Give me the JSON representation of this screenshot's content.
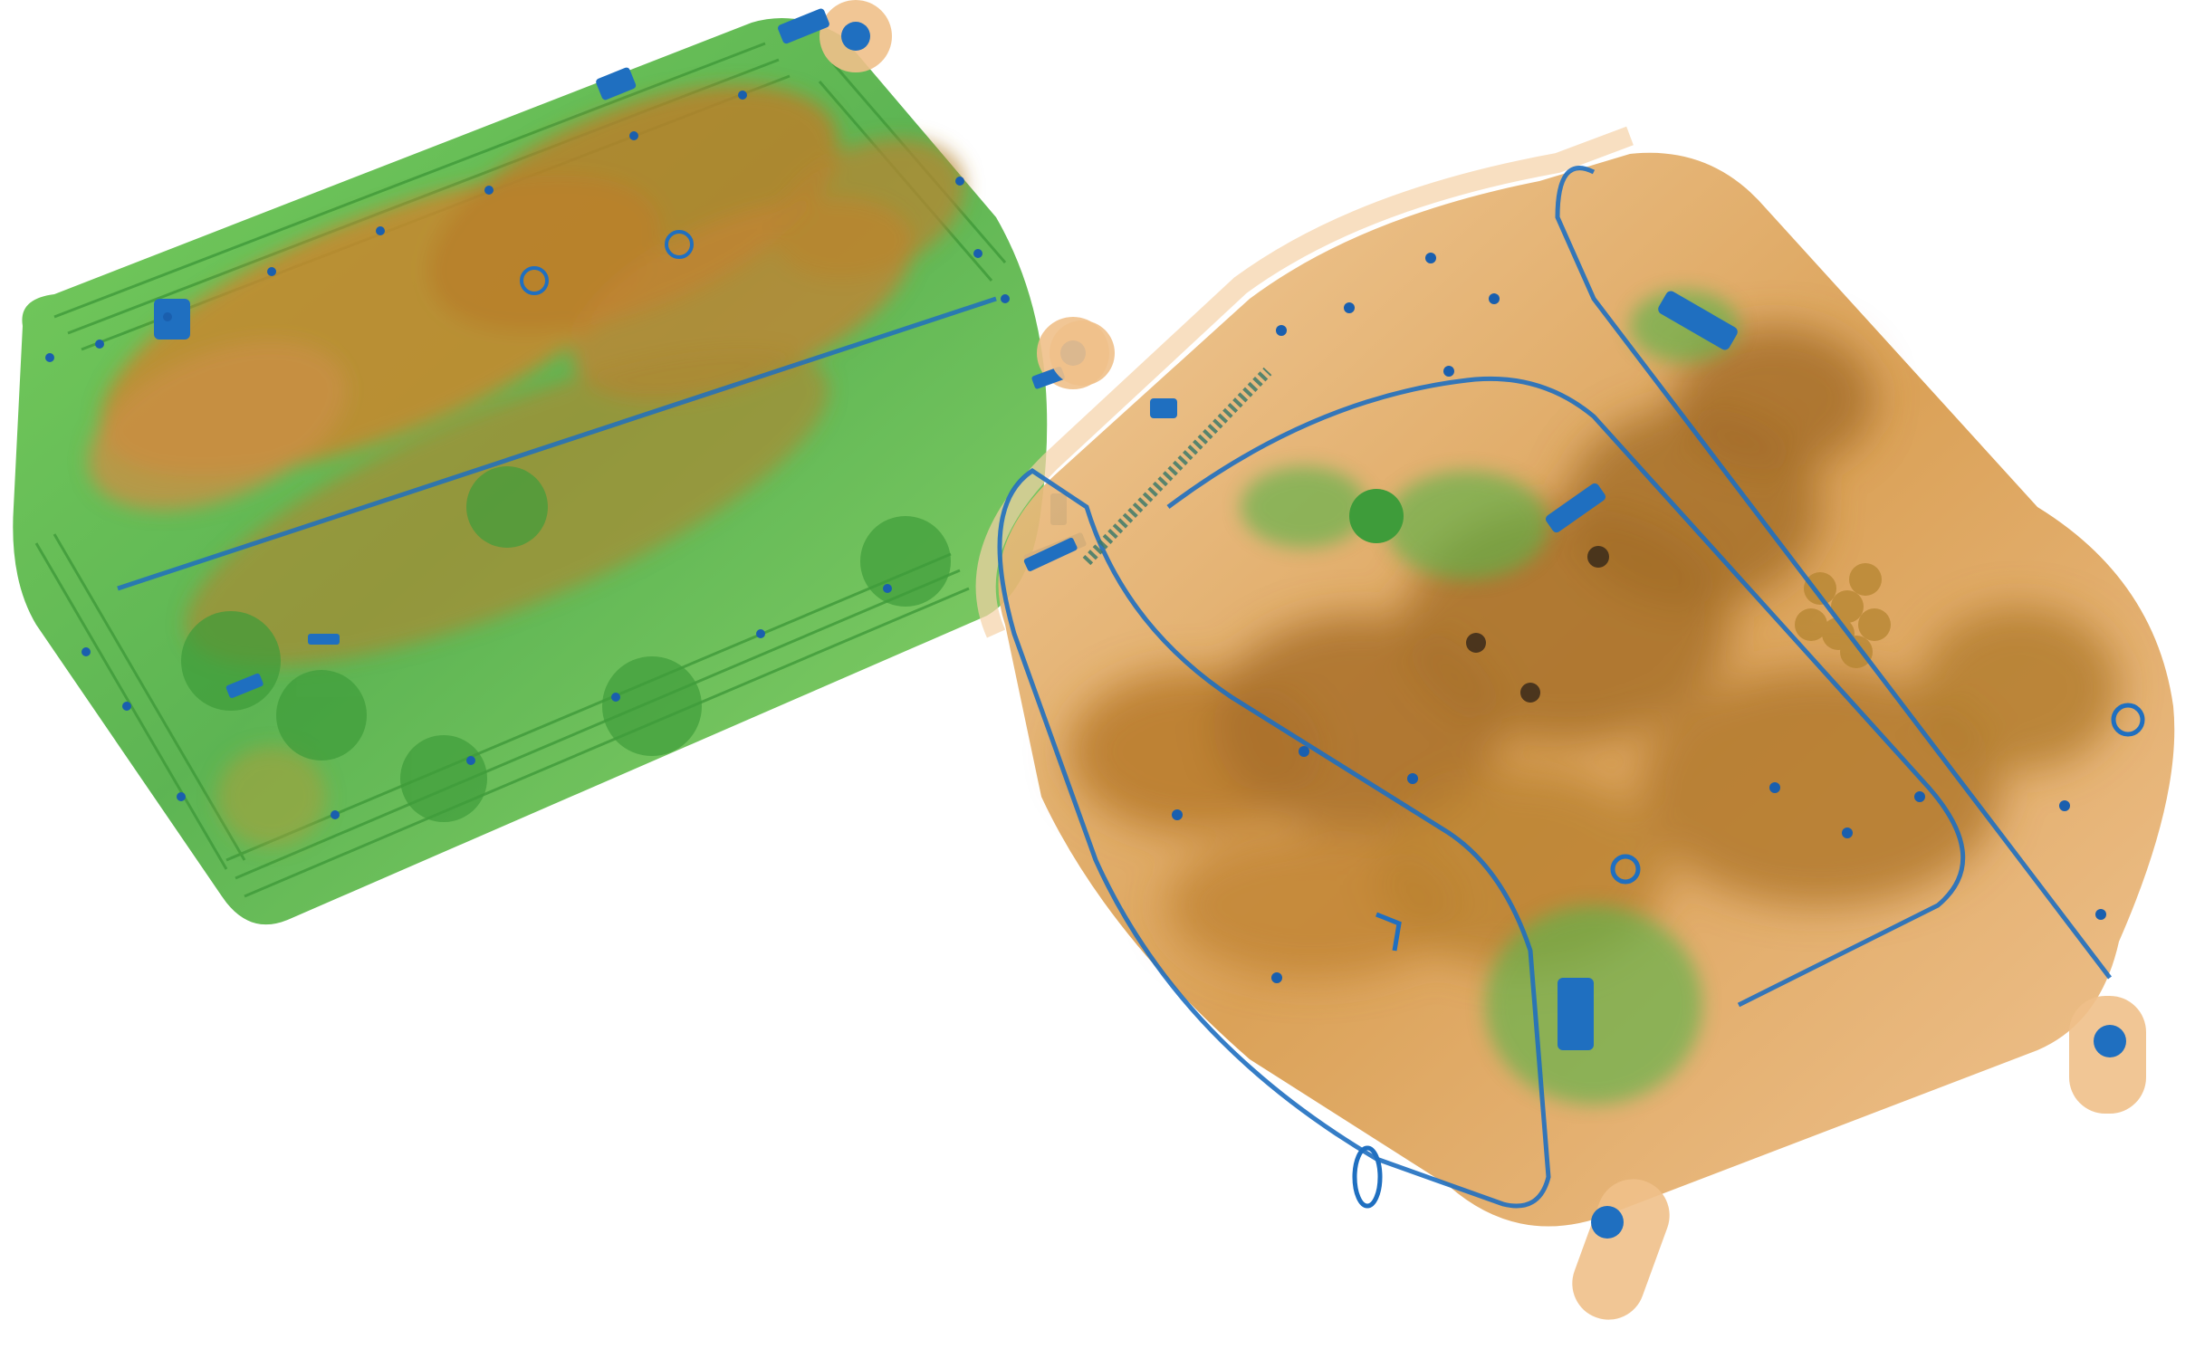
{
  "image": {
    "kind": "x-ray baggage scan",
    "background": "#ffffff",
    "palette": {
      "organic": "#c8872f",
      "organic_dark": "#8f6a1e",
      "organic_light": "#f0c08a",
      "mixed": "#4fb04a",
      "mixed_light": "#9fd87a",
      "inorganic": "#1f6fc0",
      "inorganic_dark": "#123f8a"
    },
    "objects": [
      {
        "name": "hard-shell-suitcase",
        "dominant_material": "mixed"
      },
      {
        "name": "soft-duffel-bag",
        "dominant_material": "organic"
      }
    ]
  }
}
